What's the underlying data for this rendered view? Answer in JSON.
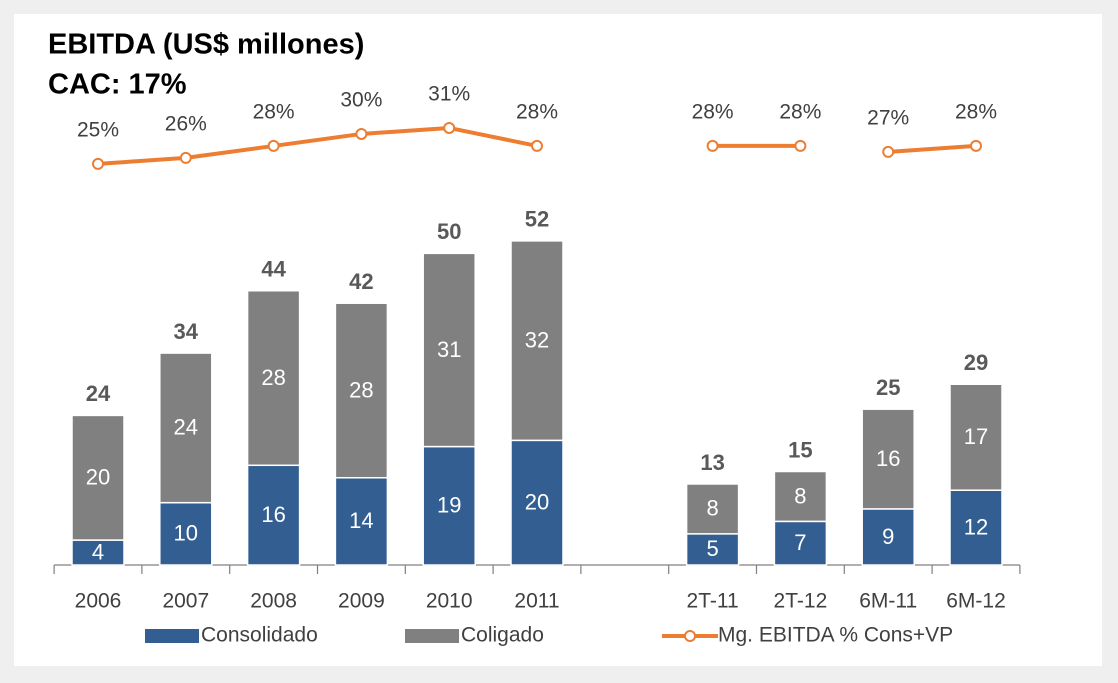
{
  "chart_data": {
    "type": "bar",
    "title": "EBITDA (US$ millones)",
    "subtitle": "CAC: 17%",
    "categories": [
      "2006",
      "2007",
      "2008",
      "2009",
      "2010",
      "2011",
      null,
      "2T-11",
      "2T-12",
      "6M-11",
      "6M-12"
    ],
    "stacked": true,
    "series": [
      {
        "name": "Consolidado",
        "color": "#335e91",
        "values": [
          4,
          10,
          16,
          14,
          19,
          20,
          null,
          5,
          7,
          9,
          12
        ]
      },
      {
        "name": "Coligado",
        "color": "#808080",
        "values": [
          20,
          24,
          28,
          28,
          31,
          32,
          null,
          8,
          8,
          16,
          17
        ]
      },
      {
        "name": "Mg. EBITDA % Cons+VP",
        "color": "#ed7d31",
        "type": "line",
        "axis": "y2",
        "values": [
          25,
          26,
          28,
          30,
          31,
          28,
          null,
          28,
          28,
          27,
          28
        ],
        "value_labels": [
          "25%",
          "26%",
          "28%",
          "30%",
          "31%",
          "28%",
          null,
          "28%",
          "28%",
          "27%",
          "28%"
        ]
      }
    ],
    "totals": [
      24,
      34,
      44,
      42,
      50,
      52,
      null,
      13,
      15,
      25,
      29
    ],
    "line_pieces": [
      [
        0,
        5
      ],
      [
        7,
        8
      ],
      [
        9,
        10
      ]
    ],
    "ylim": [
      0,
      73
    ],
    "y2lim": [
      -42,
      34
    ],
    "legend": "bottom"
  }
}
